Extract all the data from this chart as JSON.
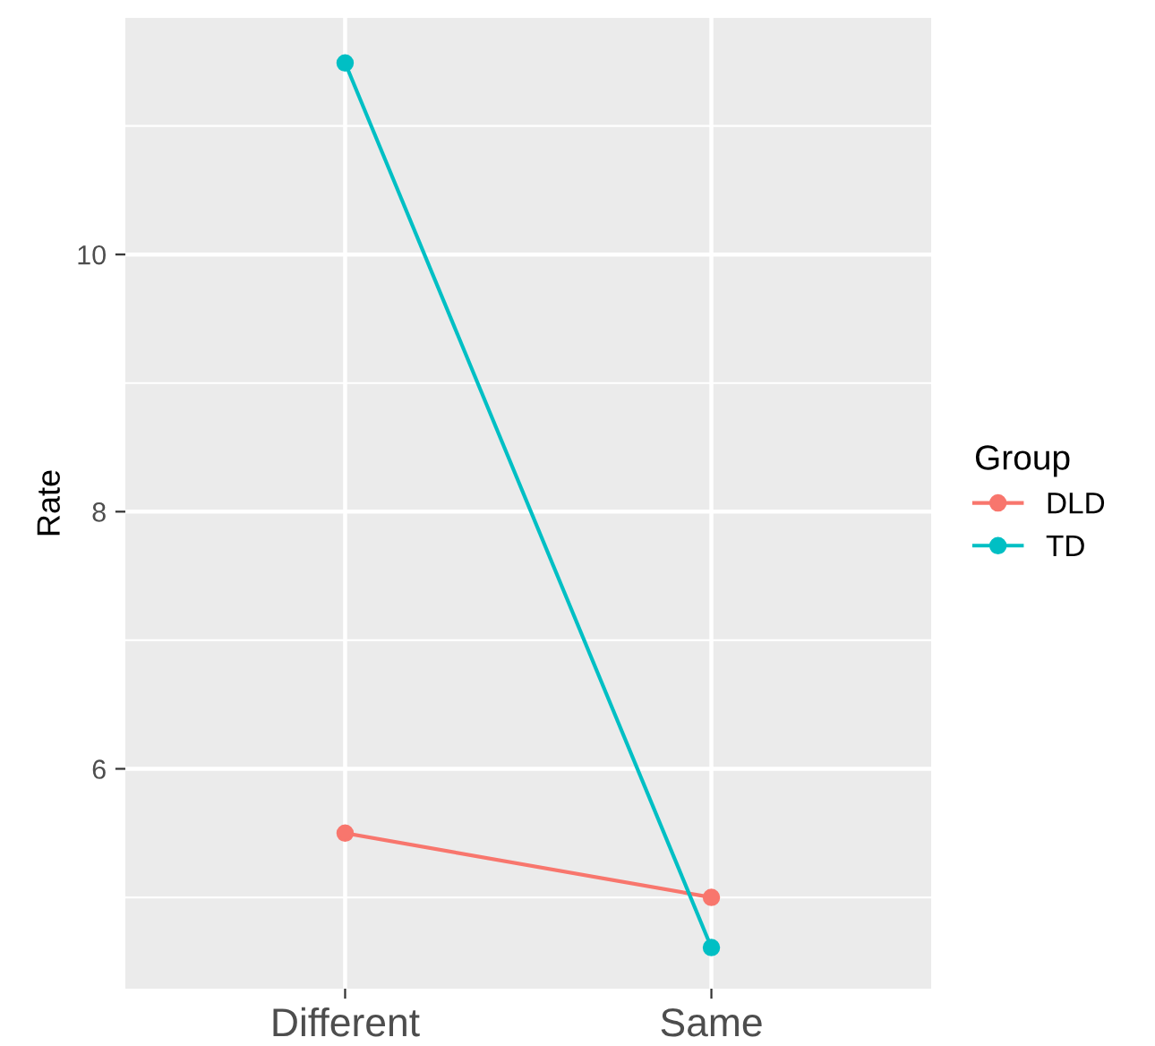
{
  "chart_data": {
    "type": "line",
    "ylabel": "Rate",
    "legend_title": "Group",
    "categories": [
      "Different",
      "Same"
    ],
    "series": [
      {
        "name": "DLD",
        "color": "#f8766d",
        "values": [
          5.5,
          5.0
        ]
      },
      {
        "name": "TD",
        "color": "#00bfc4",
        "values": [
          11.49,
          4.61
        ]
      }
    ],
    "ylim": [
      4.29,
      11.84
    ],
    "yticks": [
      6,
      8,
      10
    ],
    "grid": true,
    "legend": "right",
    "marker": "circle",
    "line_style": "solid"
  }
}
